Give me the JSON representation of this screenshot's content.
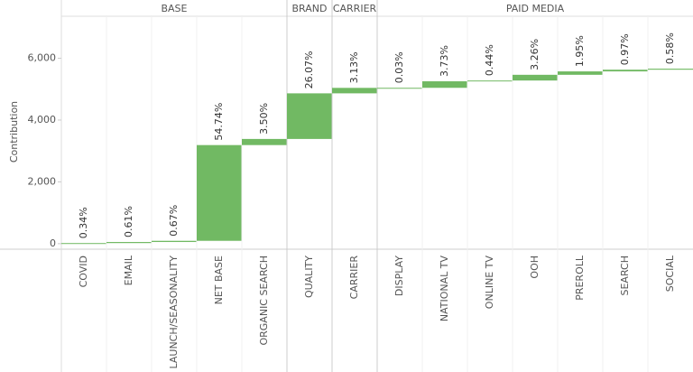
{
  "chart_data": {
    "type": "waterfall",
    "y_label": "Contribution",
    "color": "#71b963",
    "ylim": [
      -150,
      7300
    ],
    "yticks": [
      0,
      {
        "value": 2000,
        "label": "2,000"
      },
      {
        "value": 4000,
        "label": "4,000"
      },
      {
        "value": 6000,
        "label": "6,000"
      }
    ],
    "groups": [
      {
        "name": "BASE",
        "categories": [
          "COVID",
          "EMAIL",
          "LAUNCH/SEASONALITY",
          "NET BASE",
          "ORGANIC SEARCH"
        ],
        "values": [
          19,
          35,
          38,
          3098,
          198
        ],
        "value_labels": [
          "0.34%",
          "0.61%",
          "0.67%",
          "54.74%",
          "3.50%"
        ]
      },
      {
        "name": "BRAND",
        "categories": [
          "QUALITY"
        ],
        "values": [
          1476
        ],
        "value_labels": [
          "26.07%"
        ]
      },
      {
        "name": "CARRIER",
        "categories": [
          "CARRIER"
        ],
        "values": [
          177
        ],
        "value_labels": [
          "3.13%"
        ]
      },
      {
        "name": "PAID MEDIA",
        "categories": [
          "DISPLAY",
          "NATIONAL TV",
          "ONLINE TV",
          "OOH",
          "PREROLL",
          "SEARCH",
          "SOCIAL"
        ],
        "values": [
          2,
          211,
          25,
          185,
          110,
          55,
          33
        ],
        "value_labels": [
          "0.03%",
          "3.73%",
          "0.44%",
          "3.26%",
          "1.95%",
          "0.97%",
          "0.58%"
        ]
      }
    ]
  }
}
